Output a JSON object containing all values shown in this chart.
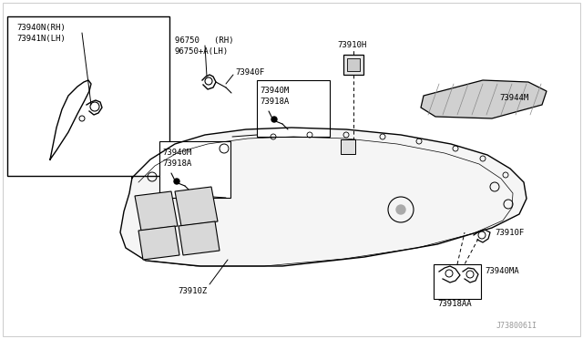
{
  "bg_color": "#ffffff",
  "line_color": "#000000",
  "fig_width": 6.4,
  "fig_height": 3.72,
  "dpi": 100,
  "watermark": "J7380061I",
  "watermark_color": "#999999",
  "label_96750_rh": "96750   (RH)",
  "label_96750_lh": "96750+A(LH)",
  "label_73940F": "73940F",
  "label_73940M": "73940M",
  "label_73918A": "73918A",
  "label_73910H": "73910H",
  "label_73944M": "73944M",
  "label_73940N": "73940N(RH)",
  "label_73941N": "73941N(LH)",
  "label_73910Z": "73910Z",
  "label_73910F": "73910F",
  "label_73940MA": "73940MA",
  "label_73918AA": "73918AA"
}
